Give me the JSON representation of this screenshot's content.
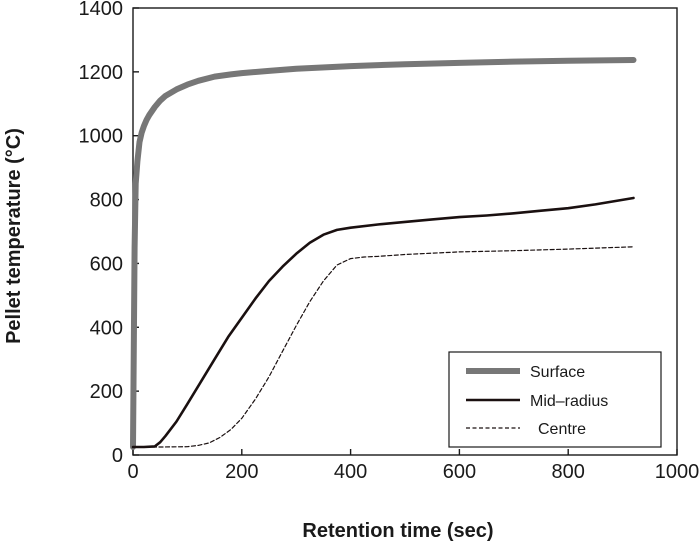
{
  "chart_data": {
    "type": "line",
    "title": "",
    "xlabel": "Retention time  (sec)",
    "ylabel": "Pellet temperature  (°C)",
    "xlim": [
      0,
      1000
    ],
    "ylim": [
      0,
      1400
    ],
    "xticks": [
      0,
      200,
      400,
      600,
      800,
      1000
    ],
    "yticks": [
      0,
      200,
      400,
      600,
      800,
      1000,
      1200,
      1400
    ],
    "grid": false,
    "legend_position": "bottom-right",
    "series": [
      {
        "name": "Surface",
        "color": "#777777",
        "style": "solid-thick",
        "x": [
          0,
          3,
          5,
          8,
          12,
          16,
          20,
          25,
          30,
          40,
          50,
          60,
          80,
          100,
          120,
          150,
          180,
          200,
          250,
          300,
          400,
          500,
          600,
          700,
          800,
          920
        ],
        "y": [
          25,
          650,
          850,
          920,
          980,
          1010,
          1030,
          1050,
          1065,
          1090,
          1110,
          1125,
          1145,
          1160,
          1172,
          1185,
          1192,
          1196,
          1203,
          1210,
          1218,
          1224,
          1228,
          1232,
          1235,
          1237
        ]
      },
      {
        "name": "Mid–radius",
        "color": "#1a1010",
        "style": "solid",
        "x": [
          0,
          20,
          40,
          50,
          60,
          80,
          100,
          125,
          150,
          175,
          200,
          225,
          250,
          275,
          300,
          325,
          350,
          375,
          400,
          450,
          500,
          550,
          600,
          650,
          700,
          750,
          800,
          850,
          920
        ],
        "y": [
          25,
          25,
          27,
          40,
          60,
          105,
          160,
          230,
          300,
          370,
          430,
          490,
          545,
          590,
          630,
          665,
          690,
          705,
          712,
          722,
          730,
          738,
          745,
          750,
          757,
          765,
          773,
          785,
          805
        ]
      },
      {
        "name": "Centre",
        "color": "#1a1010",
        "style": "dashed",
        "x": [
          0,
          50,
          100,
          120,
          140,
          160,
          180,
          200,
          225,
          250,
          275,
          300,
          325,
          350,
          375,
          400,
          425,
          450,
          500,
          550,
          600,
          700,
          800,
          920
        ],
        "y": [
          25,
          25,
          26,
          30,
          38,
          55,
          80,
          115,
          175,
          245,
          325,
          405,
          480,
          545,
          595,
          615,
          620,
          622,
          628,
          632,
          636,
          640,
          645,
          652
        ]
      }
    ]
  }
}
